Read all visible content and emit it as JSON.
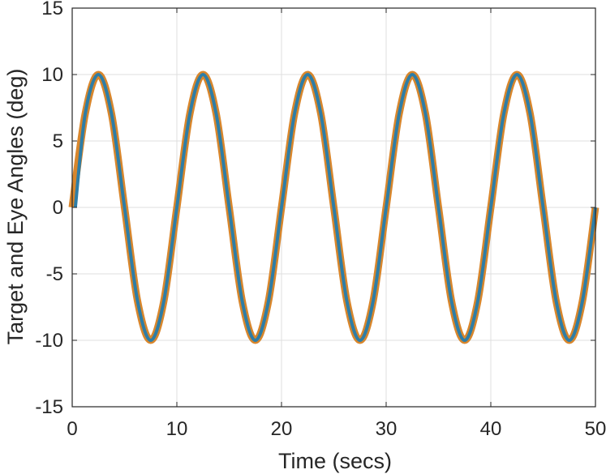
{
  "chart_data": {
    "type": "line",
    "title": "",
    "xlabel": "Time (secs)",
    "ylabel": "Target and Eye Angles (deg)",
    "xlim": [
      0,
      50
    ],
    "ylim": [
      -15,
      15
    ],
    "xticks": [
      0,
      10,
      20,
      30,
      40,
      50
    ],
    "yticks": [
      -15,
      -10,
      -5,
      0,
      5,
      10,
      15
    ],
    "xtick_labels": [
      "0",
      "10",
      "20",
      "30",
      "40",
      "50"
    ],
    "ytick_labels": [
      "-15",
      "-10",
      "-5",
      "0",
      "5",
      "10",
      "15"
    ],
    "grid": true,
    "legend": "none",
    "series": [
      {
        "color": "#D8862C",
        "x": [
          0,
          1.25,
          2.5,
          3.75,
          5,
          6.25,
          7.5,
          8.75,
          10,
          11.25,
          12.5,
          13.75,
          15,
          16.25,
          17.5,
          18.75,
          20,
          21.25,
          22.5,
          23.75,
          25,
          26.25,
          27.5,
          28.75,
          30,
          31.25,
          32.5,
          33.75,
          35,
          36.25,
          37.5,
          38.75,
          40,
          41.25,
          42.5,
          43.75,
          45,
          46.25,
          47.5,
          48.75,
          50
        ],
        "y": [
          0,
          7.07,
          10,
          7.07,
          0,
          -7.07,
          -10,
          -7.07,
          0,
          7.07,
          10,
          7.07,
          0,
          -7.07,
          -10,
          -7.07,
          0,
          7.07,
          10,
          7.07,
          0,
          -7.07,
          -10,
          -7.07,
          0,
          7.07,
          10,
          7.07,
          0,
          -7.07,
          -10,
          -7.07,
          0,
          7.07,
          10,
          7.07,
          0,
          -7.07,
          -10,
          -7.07,
          0
        ]
      },
      {
        "color": "#2E7DA6",
        "x": [
          0.3,
          1.25,
          2.5,
          3.75,
          5,
          6.25,
          7.5,
          8.75,
          10,
          11.25,
          12.5,
          13.75,
          15,
          16.25,
          17.5,
          18.75,
          20,
          21.25,
          22.5,
          23.75,
          25,
          26.25,
          27.5,
          28.75,
          30,
          31.25,
          32.5,
          33.75,
          35,
          36.25,
          37.5,
          38.75,
          40,
          41.25,
          42.5,
          43.75,
          45,
          46.25,
          47.5,
          48.75,
          50
        ],
        "y": [
          0,
          7.07,
          10,
          7.07,
          0,
          -7.07,
          -10,
          -7.07,
          0,
          7.07,
          10,
          7.07,
          0,
          -7.07,
          -10,
          -7.07,
          0,
          7.07,
          10,
          7.07,
          0,
          -7.07,
          -10,
          -7.07,
          0,
          7.07,
          10,
          7.07,
          0,
          -7.07,
          -10,
          -7.07,
          0,
          7.07,
          10,
          7.07,
          0,
          -7.07,
          -10,
          -7.07,
          0
        ]
      }
    ]
  }
}
